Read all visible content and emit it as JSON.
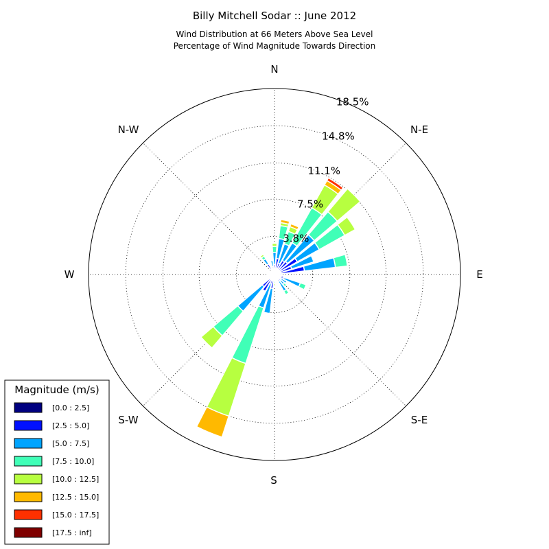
{
  "chart_data": {
    "type": "windrose",
    "title": "Billy Mitchell Sodar :: June 2012",
    "subtitle_lines": [
      "Wind Distribution at 66 Meters Above Sea Level",
      "Percentage of Wind Magnitude Towards Direction"
    ],
    "directions": [
      "N",
      "N-E",
      "E",
      "S-E",
      "S",
      "S-W",
      "W",
      "N-W"
    ],
    "ring_labels": [
      "3.8%",
      "7.5%",
      "11.1%",
      "14.8%",
      "18.5%"
    ],
    "ring_values": [
      3.8,
      7.5,
      11.1,
      14.8,
      18.5
    ],
    "rmax": 18.5,
    "legend_title": "Magnitude (m/s)",
    "bins": [
      {
        "label": "[0.0 : 2.5]",
        "color": "#000080"
      },
      {
        "label": "[2.5 : 5.0]",
        "color": "#0010ff"
      },
      {
        "label": "[5.0 : 7.5]",
        "color": "#00a4ff"
      },
      {
        "label": "[7.5 : 10.0]",
        "color": "#40ffb7"
      },
      {
        "label": "[10.0 : 12.5]",
        "color": "#b7ff40"
      },
      {
        "label": "[12.5 : 15.0]",
        "color": "#ffb900"
      },
      {
        "label": "[15.0 : 17.5]",
        "color": "#ff3000"
      },
      {
        "label": "[17.5 : inf]",
        "color": "#800000"
      }
    ],
    "sectors": [
      {
        "angle": 0,
        "values": [
          0.2,
          0.8,
          1.2,
          0.6,
          0.3,
          0,
          0,
          0
        ]
      },
      {
        "angle": 11.25,
        "values": [
          0.2,
          1.4,
          2.0,
          1.3,
          0.3,
          0.3,
          0,
          0
        ]
      },
      {
        "angle": 22.5,
        "values": [
          0.2,
          1.0,
          2.0,
          1.3,
          0.5,
          0.3,
          0,
          0
        ]
      },
      {
        "angle": 33.75,
        "values": [
          0.3,
          1.3,
          2.0,
          4.0,
          2.6,
          0.5,
          0.3,
          0
        ]
      },
      {
        "angle": 45,
        "values": [
          0.2,
          1.5,
          3.5,
          3.0,
          3.0,
          0,
          0,
          0
        ]
      },
      {
        "angle": 56.25,
        "values": [
          0.3,
          2.3,
          2.5,
          2.9,
          1.2,
          0,
          0,
          0
        ]
      },
      {
        "angle": 67.5,
        "values": [
          0.3,
          1.5,
          2.3,
          0,
          0,
          0,
          0,
          0
        ]
      },
      {
        "angle": 78.75,
        "values": [
          0.3,
          2.7,
          3.1,
          1.2,
          0,
          0,
          0,
          0
        ]
      },
      {
        "angle": 90,
        "values": [
          0.2,
          0.5,
          0,
          0,
          0,
          0,
          0,
          0
        ]
      },
      {
        "angle": 101.25,
        "values": [
          0.2,
          0.7,
          0,
          0,
          0,
          0,
          0,
          0
        ]
      },
      {
        "angle": 112.5,
        "values": [
          0.3,
          0.7,
          1.7,
          0.6,
          0,
          0,
          0,
          0
        ]
      },
      {
        "angle": 123.75,
        "values": [
          0.2,
          0.5,
          0.7,
          0,
          0,
          0,
          0,
          0
        ]
      },
      {
        "angle": 135,
        "values": [
          0.2,
          0.6,
          0.5,
          0.3,
          0,
          0,
          0,
          0
        ]
      },
      {
        "angle": 146.25,
        "values": [
          0.2,
          0.6,
          1.1,
          0.4,
          0,
          0,
          0,
          0
        ]
      },
      {
        "angle": 157.5,
        "values": [
          0.1,
          0.2,
          0.3,
          0,
          0,
          0,
          0,
          0
        ]
      },
      {
        "angle": 168.75,
        "values": [
          0.1,
          0.3,
          0.3,
          0,
          0,
          0,
          0,
          0
        ]
      },
      {
        "angle": 180,
        "values": [
          0.1,
          0.3,
          0.2,
          0.3,
          0.2,
          0,
          0,
          0
        ]
      },
      {
        "angle": 191.25,
        "values": [
          0.2,
          1.2,
          2.5,
          0,
          0,
          0,
          0,
          0
        ]
      },
      {
        "angle": 202.5,
        "values": [
          0.2,
          0.8,
          2.5,
          5.8,
          5.5,
          2.2,
          0,
          0
        ]
      },
      {
        "angle": 213.75,
        "values": [
          0.3,
          1.6,
          0,
          0,
          0,
          0,
          0,
          0
        ]
      },
      {
        "angle": 225,
        "values": [
          0.2,
          1.4,
          3.2,
          3.2,
          1.6,
          0,
          0,
          0
        ]
      },
      {
        "angle": 236.25,
        "values": [
          0.2,
          0.5,
          0,
          0,
          0,
          0,
          0,
          0
        ]
      },
      {
        "angle": 247.5,
        "values": [
          0.1,
          0.4,
          0,
          0,
          0,
          0,
          0,
          0
        ]
      },
      {
        "angle": 258.75,
        "values": [
          0.1,
          0.3,
          0,
          0,
          0,
          0,
          0,
          0
        ]
      },
      {
        "angle": 270,
        "values": [
          0.2,
          0.4,
          0,
          0,
          0,
          0,
          0,
          0
        ]
      },
      {
        "angle": 281.25,
        "values": [
          0.1,
          0.5,
          0,
          0,
          0,
          0,
          0,
          0
        ]
      },
      {
        "angle": 292.5,
        "values": [
          0.1,
          0.4,
          0,
          0,
          0,
          0,
          0,
          0
        ]
      },
      {
        "angle": 303.75,
        "values": [
          0.1,
          0.4,
          0,
          0,
          0,
          0,
          0,
          0
        ]
      },
      {
        "angle": 315,
        "values": [
          0.2,
          0.2,
          0,
          0,
          0,
          0,
          0,
          0
        ]
      },
      {
        "angle": 326.25,
        "values": [
          0.2,
          1.0,
          0.6,
          0.3,
          0.2,
          0,
          0,
          0
        ]
      },
      {
        "angle": 337.5,
        "values": [
          0.2,
          0.5,
          0,
          0,
          0,
          0,
          0,
          0
        ]
      },
      {
        "angle": 348.75,
        "values": [
          0.2,
          0.6,
          0.6,
          0,
          0,
          0,
          0,
          0
        ]
      }
    ],
    "grid": true,
    "legend_position": "lower-left"
  }
}
